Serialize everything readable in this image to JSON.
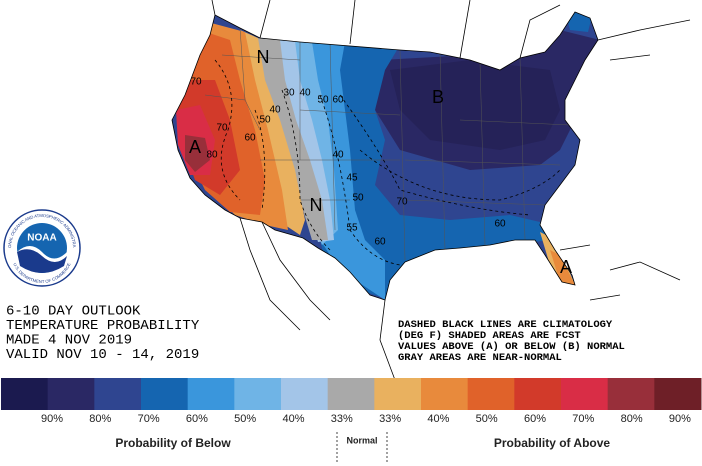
{
  "title_lines": [
    "6-10 DAY OUTLOOK",
    "TEMPERATURE PROBABILITY",
    "MADE  4 NOV 2019",
    "VALID  NOV 10 - 14, 2019"
  ],
  "notes": [
    "DASHED BLACK LINES ARE CLIMATOLOGY",
    "(DEG F) SHADED AREAS ARE FCST",
    "VALUES ABOVE (A) OR BELOW (B) NORMAL",
    "GRAY AREAS ARE NEAR-NORMAL"
  ],
  "logo": {
    "name": "NOAA",
    "ring_top": "NATIONAL OCEANIC AND ATMOSPHERIC ADMINISTRATION",
    "ring_bottom": "U.S. DEPARTMENT OF COMMERCE"
  },
  "map_labels": [
    "N",
    "70",
    "70",
    "60",
    "50",
    "40",
    "30",
    "40",
    "50",
    "60",
    "A",
    "80",
    "40",
    "45",
    "50",
    "N",
    "55",
    "60",
    "70",
    "60",
    "B",
    "A"
  ],
  "legend": {
    "colors": [
      "#1b1a4f",
      "#2a2864",
      "#2f4590",
      "#1565b0",
      "#3a96dc",
      "#6fb4e6",
      "#a3c5e8",
      "#a9a9a9",
      "#e9b15f",
      "#e88a3c",
      "#e0622a",
      "#d23a2a",
      "#d92d46",
      "#982f3a",
      "#6e1f27"
    ],
    "labels": [
      "90%",
      "80%",
      "70%",
      "60%",
      "50%",
      "40%",
      "33%",
      "33%",
      "40%",
      "50%",
      "60%",
      "70%",
      "80%",
      "90%"
    ],
    "below": "Probability of Below",
    "normal": "Normal",
    "above": "Probability of Above"
  }
}
